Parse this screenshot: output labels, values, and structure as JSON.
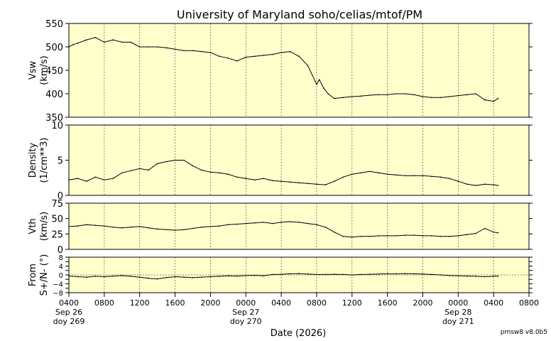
{
  "title": "University of Maryland  soho/celias/mtof/PM",
  "footer_tag": "pmsw8 v8.0b5",
  "colors": {
    "panel_bg": "#ffffcc",
    "grid": "#555555",
    "trace": "#000000",
    "axis": "#000000"
  },
  "chart_data": [
    {
      "type": "line",
      "panel": "speed",
      "ylabel_lines": [
        "Vsw",
        "(km/s)"
      ],
      "ylim": [
        350,
        550
      ],
      "yticks": [
        350,
        400,
        450,
        500,
        550
      ],
      "grid": true,
      "series": [
        {
          "x": [
            0,
            0.5,
            1,
            2,
            3,
            4,
            5,
            6,
            7,
            8,
            9,
            10,
            11,
            12,
            13,
            14,
            15,
            16,
            17,
            18,
            19,
            20,
            21,
            22,
            23,
            24,
            25,
            26,
            27,
            28,
            28.3,
            28.8,
            29.3,
            30,
            31,
            32,
            33,
            34,
            35,
            36,
            37,
            38,
            39,
            40,
            41,
            42,
            43,
            44,
            45,
            46,
            47,
            48,
            48.5
          ],
          "y": [
            500,
            505,
            508,
            515,
            520,
            510,
            515,
            510,
            510,
            500,
            500,
            500,
            498,
            495,
            492,
            492,
            490,
            488,
            480,
            476,
            470,
            478,
            480,
            482,
            484,
            488,
            490,
            480,
            460,
            420,
            430,
            412,
            400,
            390,
            392,
            394,
            395,
            397,
            398,
            398,
            400,
            400,
            398,
            394,
            392,
            392,
            394,
            396,
            398,
            400,
            387,
            384,
            390
          ]
        }
      ]
    },
    {
      "type": "line",
      "panel": "density",
      "ylabel_lines": [
        "Density",
        "(1/cm**3)"
      ],
      "ylim": [
        0,
        10
      ],
      "yticks": [
        0,
        5,
        10
      ],
      "grid": true,
      "series": [
        {
          "x": [
            0,
            1,
            2,
            3,
            4,
            5,
            6,
            7,
            8,
            9,
            10,
            11,
            12,
            13,
            14,
            15,
            16,
            17,
            18,
            19,
            20,
            21,
            22,
            23,
            24,
            25,
            26,
            27,
            28,
            29,
            30,
            31,
            32,
            33,
            34,
            35,
            36,
            37,
            38,
            39,
            40,
            41,
            42,
            43,
            44,
            45,
            46,
            47,
            48,
            48.5
          ],
          "y": [
            2.2,
            2.4,
            2.0,
            2.6,
            2.2,
            2.4,
            3.2,
            3.5,
            3.8,
            3.6,
            4.5,
            4.8,
            5.0,
            5.0,
            4.2,
            3.6,
            3.3,
            3.2,
            3.0,
            2.6,
            2.4,
            2.2,
            2.4,
            2.1,
            2.0,
            1.9,
            1.8,
            1.7,
            1.6,
            1.5,
            2.0,
            2.6,
            3.0,
            3.2,
            3.4,
            3.2,
            3.0,
            2.9,
            2.8,
            2.8,
            2.8,
            2.7,
            2.6,
            2.4,
            2.0,
            1.6,
            1.4,
            1.6,
            1.5,
            1.4
          ]
        }
      ]
    },
    {
      "type": "line",
      "panel": "thermal",
      "ylabel_lines": [
        "Vth",
        "(km/s)"
      ],
      "ylim": [
        0,
        75
      ],
      "yticks": [
        0,
        25,
        50,
        75
      ],
      "grid": true,
      "series": [
        {
          "x": [
            0,
            1,
            2,
            3,
            4,
            5,
            6,
            7,
            8,
            9,
            10,
            11,
            12,
            13,
            14,
            15,
            16,
            17,
            18,
            19,
            20,
            21,
            22,
            23,
            24,
            25,
            26,
            27,
            28,
            29,
            30,
            31,
            32,
            33,
            34,
            35,
            36,
            37,
            38,
            39,
            40,
            41,
            42,
            43,
            44,
            45,
            46,
            47,
            48,
            48.5
          ],
          "y": [
            37,
            38,
            40,
            39,
            38,
            36,
            35,
            36,
            37,
            35,
            33,
            32,
            31,
            32,
            34,
            36,
            37,
            38,
            40,
            41,
            42,
            43,
            44,
            42,
            44,
            45,
            44,
            42,
            40,
            36,
            28,
            21,
            20,
            21,
            21,
            22,
            22,
            22,
            23,
            23,
            22,
            22,
            21,
            21,
            22,
            24,
            26,
            34,
            28,
            27
          ]
        }
      ]
    },
    {
      "type": "line",
      "panel": "direction",
      "ylabel_lines": [
        "From",
        "S+/N- (°)"
      ],
      "ylim": [
        -8,
        8
      ],
      "yticks": [
        -8,
        -6,
        -4,
        -2,
        0,
        2,
        4,
        6,
        8
      ],
      "ytick_labels": [
        "−8",
        "−4",
        "0",
        "4",
        "8"
      ],
      "zero_line": true,
      "grid": true,
      "series": [
        {
          "x": [
            0,
            1,
            2,
            3,
            4,
            5,
            6,
            7,
            8,
            9,
            10,
            11,
            12,
            13,
            14,
            15,
            16,
            17,
            18,
            19,
            20,
            21,
            22,
            23,
            24,
            25,
            26,
            27,
            28,
            29,
            30,
            31,
            32,
            33,
            34,
            35,
            36,
            37,
            38,
            39,
            40,
            41,
            42,
            43,
            44,
            45,
            46,
            47,
            48,
            48.5
          ],
          "y": [
            -0.5,
            -0.8,
            -1.0,
            -0.6,
            -0.8,
            -0.5,
            -0.3,
            -0.6,
            -1.0,
            -1.5,
            -1.8,
            -1.2,
            -0.8,
            -1.0,
            -1.2,
            -1.0,
            -0.8,
            -0.6,
            -0.4,
            -0.5,
            -0.3,
            -0.2,
            -0.4,
            0.2,
            0.3,
            0.5,
            0.6,
            0.4,
            0.2,
            0.2,
            0.3,
            0.2,
            0.0,
            0.2,
            0.3,
            0.4,
            0.5,
            0.5,
            0.6,
            0.5,
            0.4,
            0.2,
            0.0,
            -0.3,
            -0.4,
            -0.5,
            -0.6,
            -0.8,
            -0.6,
            -0.5
          ]
        }
      ]
    }
  ],
  "x_axis": {
    "xlim": [
      0,
      52
    ],
    "grid_x": [
      0,
      4,
      8,
      12,
      16,
      20,
      24,
      28,
      32,
      36,
      40,
      44,
      48
    ],
    "ticks": [
      {
        "x": 0,
        "label": "0400"
      },
      {
        "x": 4,
        "label": "0800"
      },
      {
        "x": 8,
        "label": "1200"
      },
      {
        "x": 12,
        "label": "1600"
      },
      {
        "x": 16,
        "label": "2000"
      },
      {
        "x": 20,
        "label": "0000"
      },
      {
        "x": 24,
        "label": "0400"
      },
      {
        "x": 28,
        "label": "0800"
      },
      {
        "x": 32,
        "label": "1200"
      },
      {
        "x": 36,
        "label": "1600"
      },
      {
        "x": 40,
        "label": "2000"
      },
      {
        "x": 44,
        "label": "0000"
      },
      {
        "x": 48,
        "label": "0400"
      },
      {
        "x": 52,
        "label": "0800"
      }
    ],
    "day_labels": [
      {
        "x": 0,
        "date": "Sep 26",
        "doy": "doy 269"
      },
      {
        "x": 20,
        "date": "Sep 27",
        "doy": "doy 270"
      },
      {
        "x": 44,
        "date": "Sep 28",
        "doy": "doy 271"
      }
    ],
    "xlabel": "Date (2026)"
  }
}
